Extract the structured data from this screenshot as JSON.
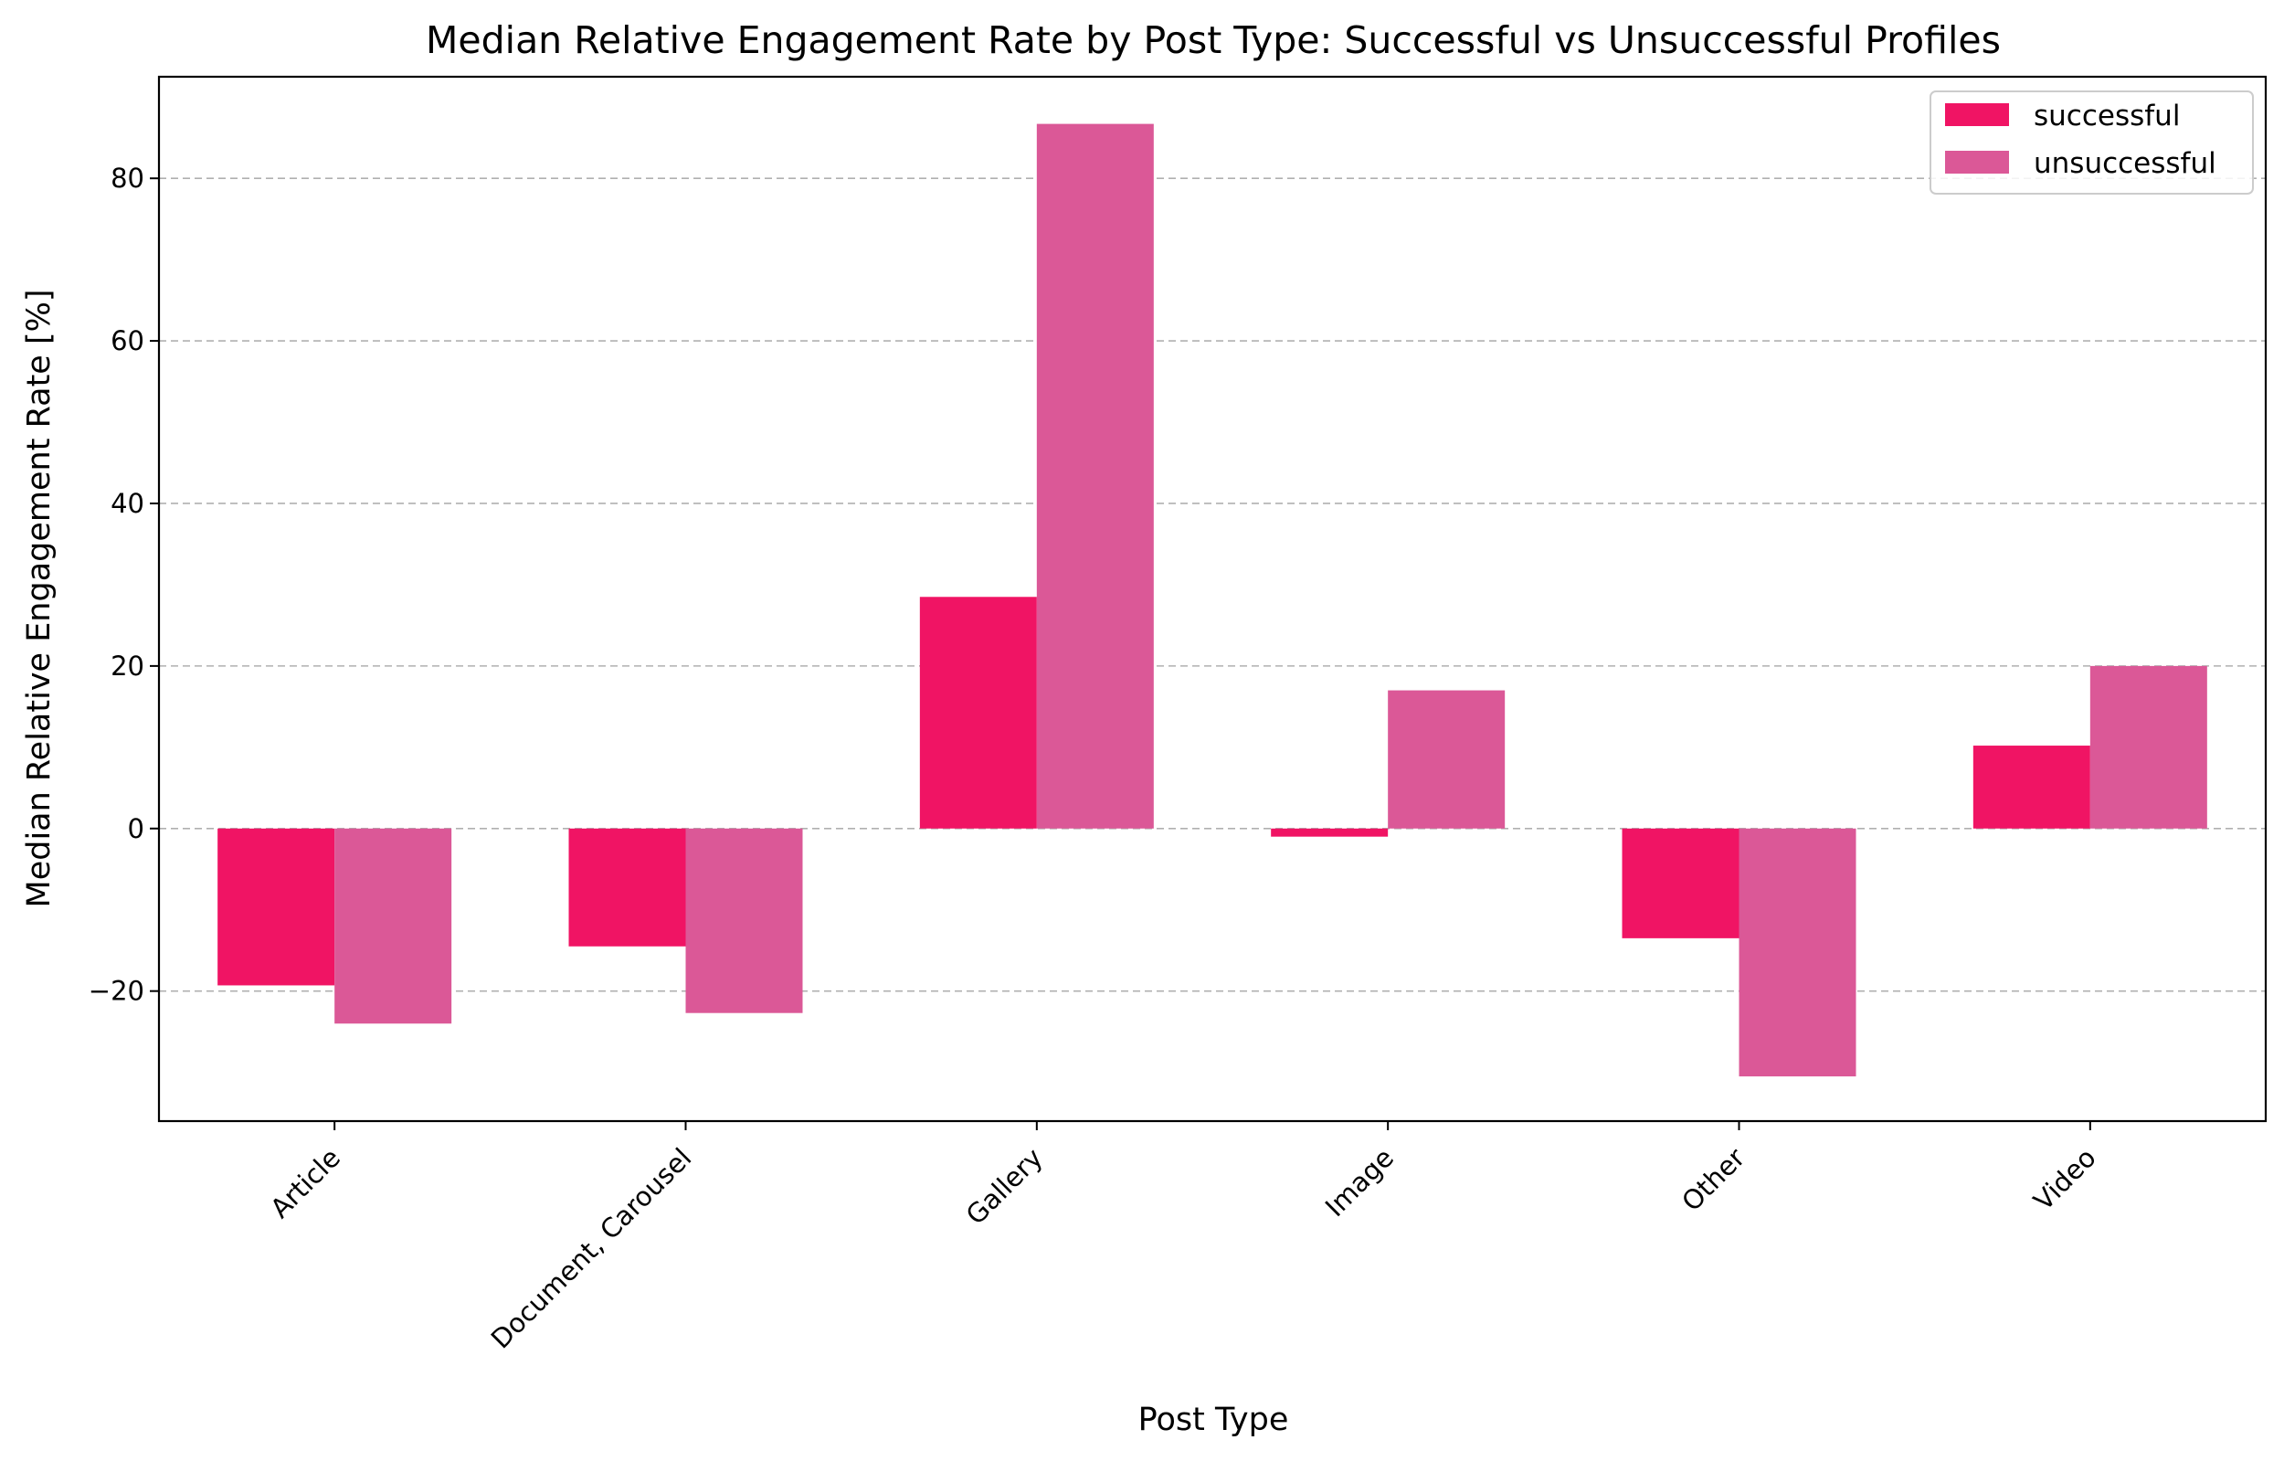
{
  "chart_data": {
    "type": "bar",
    "title": "Median Relative Engagement Rate by Post Type: Successful vs Unsuccessful Profiles",
    "xlabel": "Post Type",
    "ylabel": "Median Relative Engagement Rate [%]",
    "categories": [
      "Article",
      "Document, Carousel",
      "Gallery",
      "Image",
      "Other",
      "Video"
    ],
    "series": [
      {
        "name": "successful",
        "color": "#f01464",
        "values": [
          -19.3,
          -14.5,
          28.5,
          -1.0,
          -13.5,
          10.2
        ]
      },
      {
        "name": "unsuccessful",
        "color": "#db5897",
        "values": [
          -24.0,
          -22.7,
          86.7,
          17.0,
          -30.5,
          20.0
        ]
      }
    ],
    "ylim": [
      -36,
      92.5
    ],
    "yticks": [
      -20,
      0,
      20,
      40,
      60,
      80
    ],
    "ytick_labels": [
      "−20",
      "0",
      "20",
      "40",
      "60",
      "80"
    ],
    "grid": true,
    "legend_position": "top-right"
  }
}
